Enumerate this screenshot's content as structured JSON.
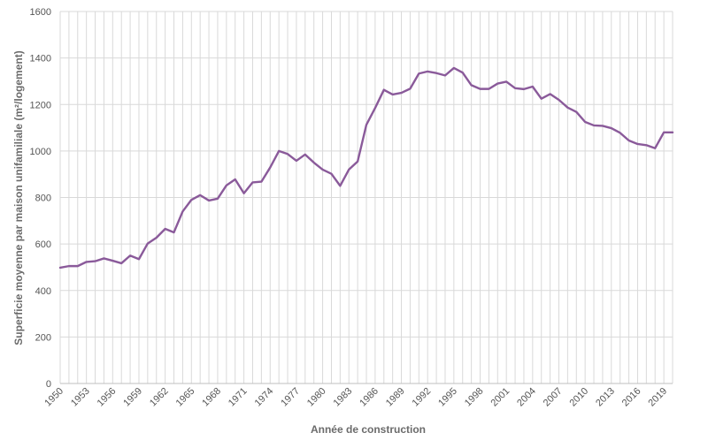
{
  "chart_data": {
    "type": "line",
    "xlabel": "Année de construction",
    "ylabel": "Superficie moyenne par maison unifamiliale (m²/logement)",
    "ylim": [
      0,
      1600
    ],
    "yticks": [
      0,
      200,
      400,
      600,
      800,
      1000,
      1200,
      1400,
      1600
    ],
    "xtick_labels": [
      "1950",
      "1953",
      "1956",
      "1959",
      "1962",
      "1965",
      "1968",
      "1971",
      "1974",
      "1977",
      "1980",
      "1983",
      "1986",
      "1989",
      "1992",
      "1995",
      "1998",
      "2001",
      "2004",
      "2007",
      "2010",
      "2013",
      "2016",
      "2019"
    ],
    "grid": true,
    "legend": "none",
    "line_color": "#8a5a9a",
    "x": [
      1950,
      1951,
      1952,
      1953,
      1954,
      1955,
      1956,
      1957,
      1958,
      1959,
      1960,
      1961,
      1962,
      1963,
      1964,
      1965,
      1966,
      1967,
      1968,
      1969,
      1970,
      1971,
      1972,
      1973,
      1974,
      1975,
      1976,
      1977,
      1978,
      1979,
      1980,
      1981,
      1982,
      1983,
      1984,
      1985,
      1986,
      1987,
      1988,
      1989,
      1990,
      1991,
      1992,
      1993,
      1994,
      1995,
      1996,
      1997,
      1998,
      1999,
      2000,
      2001,
      2002,
      2003,
      2004,
      2005,
      2006,
      2007,
      2008,
      2009,
      2010,
      2011,
      2012,
      2013,
      2014,
      2015,
      2016,
      2017,
      2018,
      2019,
      2020
    ],
    "values": [
      498,
      505,
      505,
      523,
      526,
      538,
      528,
      517,
      550,
      535,
      602,
      627,
      665,
      650,
      740,
      790,
      810,
      787,
      795,
      852,
      878,
      818,
      865,
      868,
      929,
      1000,
      987,
      958,
      985,
      950,
      920,
      902,
      850,
      920,
      955,
      1113,
      1185,
      1263,
      1243,
      1250,
      1268,
      1333,
      1342,
      1335,
      1325,
      1357,
      1337,
      1283,
      1267,
      1267,
      1290,
      1298,
      1270,
      1266,
      1277,
      1225,
      1245,
      1220,
      1187,
      1168,
      1125,
      1110,
      1108,
      1098,
      1078,
      1045,
      1030,
      1025,
      1012,
      1080,
      1080
    ]
  }
}
